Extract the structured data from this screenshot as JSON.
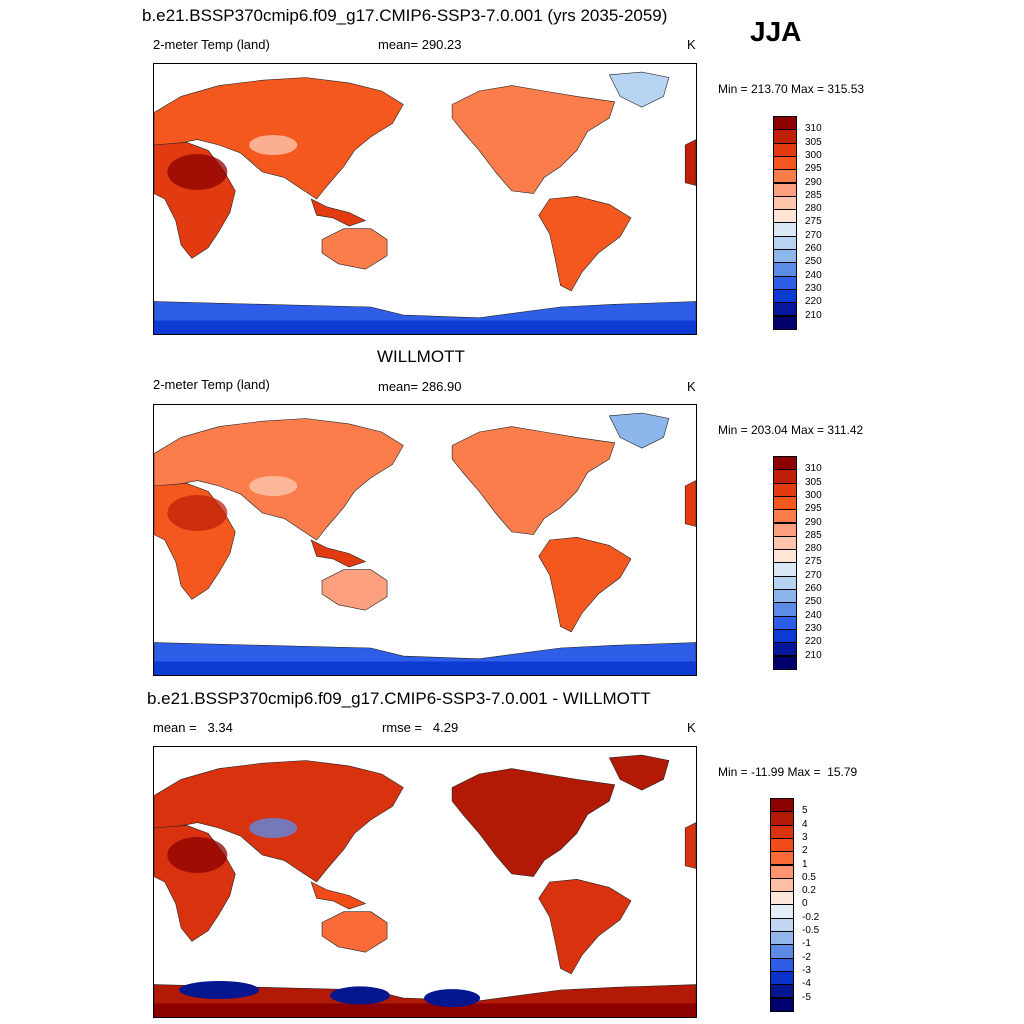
{
  "season": "JJA",
  "panels": [
    {
      "title": "b.e21.BSSP370cmip6.f09_g17.CMIP6-SSP3-7.0.001 (yrs 2035-2059)",
      "left_label": "2-meter Temp (land)",
      "center_label": "mean= 290.23",
      "units": "K",
      "minmax": "Min = 213.70 Max = 315.53",
      "levels": [
        "310",
        "305",
        "300",
        "295",
        "290",
        "285",
        "280",
        "275",
        "270",
        "260",
        "250",
        "240",
        "230",
        "220",
        "210"
      ],
      "colors": [
        "#8b0000",
        "#c0200a",
        "#e23b12",
        "#f4581f",
        "#fb7d4c",
        "#fca07f",
        "#fdc5ac",
        "#fee5d6",
        "#dbe9f7",
        "#b6d3f2",
        "#8db6ec",
        "#5c8ce6",
        "#2e5ee8",
        "#0e3ad4",
        "#06179b",
        "#00006e"
      ],
      "field": "abs"
    },
    {
      "title": "WILLMOTT",
      "left_label": "2-meter Temp (land)",
      "center_label": "mean= 286.90",
      "units": "K",
      "minmax": "Min = 203.04 Max = 311.42",
      "levels": [
        "310",
        "305",
        "300",
        "295",
        "290",
        "285",
        "280",
        "275",
        "270",
        "260",
        "250",
        "240",
        "230",
        "220",
        "210"
      ],
      "colors": [
        "#8b0000",
        "#c0200a",
        "#e23b12",
        "#f4581f",
        "#fb7d4c",
        "#fca07f",
        "#fdc5ac",
        "#fee5d6",
        "#dbe9f7",
        "#b6d3f2",
        "#8db6ec",
        "#5c8ce6",
        "#2e5ee8",
        "#0e3ad4",
        "#06179b",
        "#00006e"
      ],
      "field": "obs"
    },
    {
      "title": "b.e21.BSSP370cmip6.f09_g17.CMIP6-SSP3-7.0.001 - WILLMOTT",
      "left_label": "mean =   3.34",
      "center_label": "rmse =   4.29",
      "units": "K",
      "minmax": "Min = -11.99 Max =  15.79",
      "levels": [
        "5",
        "4",
        "3",
        "2",
        "1",
        "0.5",
        "0.2",
        "0",
        "-0.2",
        "-0.5",
        "-1",
        "-2",
        "-3",
        "-4",
        "-5"
      ],
      "colors": [
        "#8b0000",
        "#b21a06",
        "#d8320f",
        "#f04b19",
        "#fb6b3a",
        "#fc9472",
        "#fdbea4",
        "#fee6da",
        "#e2edf8",
        "#c1d7f3",
        "#92b5eb",
        "#5f8ae4",
        "#2f5ce6",
        "#0b33cc",
        "#05178f",
        "#00006e"
      ],
      "field": "diff"
    }
  ]
}
